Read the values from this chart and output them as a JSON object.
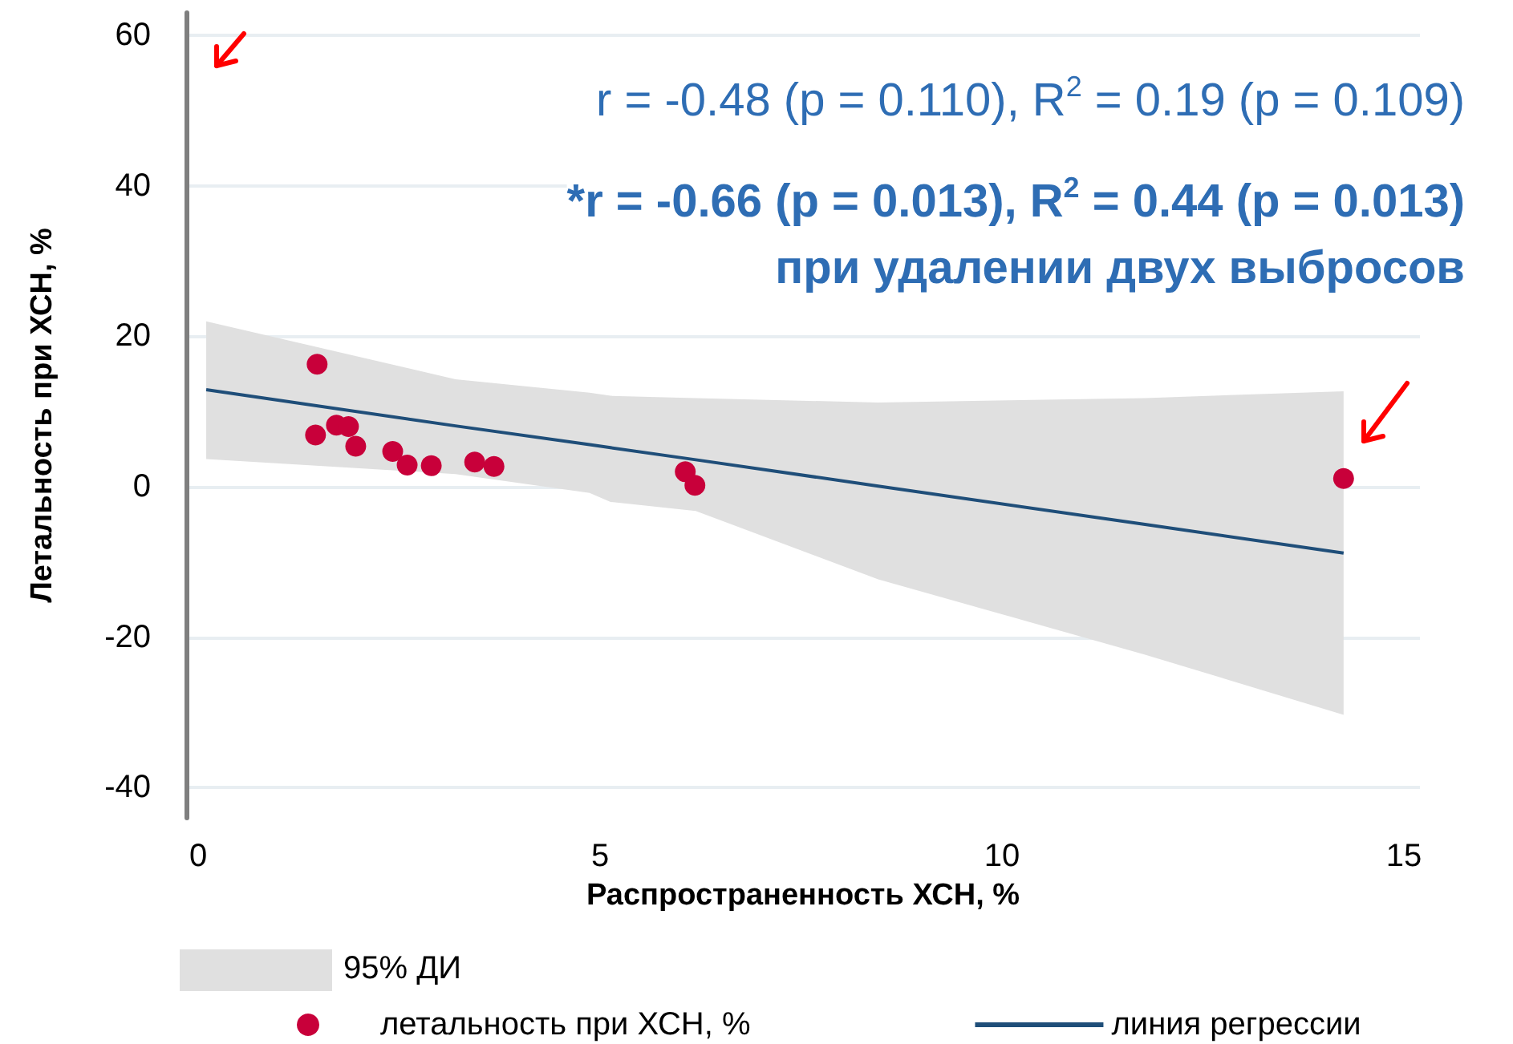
{
  "chart_data": {
    "type": "scatter",
    "xlabel": "Распространенность ХСН, %",
    "ylabel": "Летальность при ХСН, %",
    "annotations": [
      "r = -0.48 (p = 0.110), R$^{2}$ = 0.19 (p = 0.109)",
      "*r = -0.66 (p = 0.013), R$^{2}$ = 0.44 (p = 0.013)",
      "при удалении двух выбросов",
      "95% ДИ"
    ],
    "xlim": [
      -0.15,
      15.2
    ],
    "xticks": [
      0,
      5,
      10,
      15
    ],
    "ylim": [
      -44,
      63
    ],
    "yticks": [
      -40,
      -20,
      0,
      20,
      40,
      60
    ],
    "grid": "y",
    "legend": "bottom",
    "marker": "circle",
    "series": [
      {
        "name": "летальность при ХСН, %",
        "color": "#c8003a",
        "x": [
          1.48,
          1.46,
          1.72,
          1.87,
          1.96,
          2.42,
          2.6,
          2.9,
          3.44,
          3.68,
          6.06,
          6.18,
          14.25
        ],
        "values": [
          16.3,
          6.9,
          8.2,
          8.0,
          5.4,
          4.7,
          2.9,
          2.8,
          3.3,
          2.7,
          2.0,
          0.2,
          1.1
        ]
      },
      {
        "name": "линия регрессии",
        "type": "line",
        "color": "#1f4e79",
        "marker": "none",
        "line_style": "solid",
        "x": [
          0.1,
          3.2,
          4.87,
          5.13,
          6.19,
          8.46,
          11.78,
          14.25
        ],
        "values": [
          12.9,
          8.1,
          5.6,
          5.2,
          3.6,
          0.1,
          -5.0,
          -8.8
        ],
        "lower": [
          3.7,
          1.7,
          -0.8,
          -2.0,
          -3.2,
          -12.3,
          -22.3,
          -30.3
        ],
        "upper": [
          22,
          14.3,
          12.5,
          12.1,
          11.8,
          11.2,
          11.8,
          12.7
        ]
      }
    ]
  }
}
